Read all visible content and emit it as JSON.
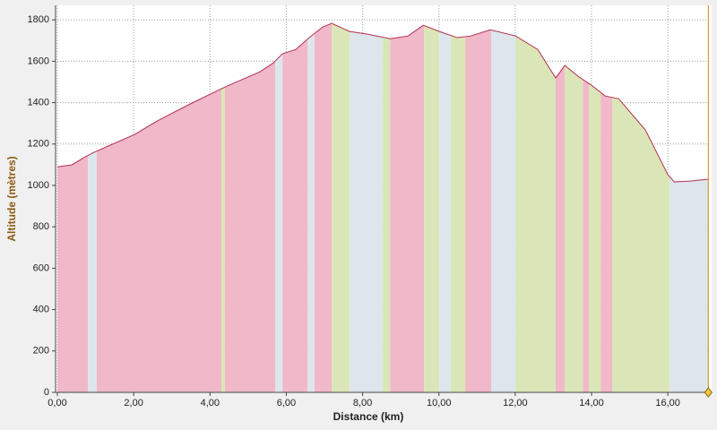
{
  "chart_data": {
    "type": "area",
    "x_label": "Distance (km)",
    "y_label": "Altitude (mètres)",
    "xlim": [
      0,
      17.1
    ],
    "ylim": [
      0,
      1870
    ],
    "xticks": [
      {
        "value": 0,
        "label": "0,00"
      },
      {
        "value": 2,
        "label": "2,00"
      },
      {
        "value": 4,
        "label": "4,00"
      },
      {
        "value": 6,
        "label": "6,00"
      },
      {
        "value": 8,
        "label": "8,00"
      },
      {
        "value": 10,
        "label": "10,00"
      },
      {
        "value": 12,
        "label": "12,00"
      },
      {
        "value": 14,
        "label": "14,00"
      },
      {
        "value": 16,
        "label": "16,00"
      }
    ],
    "yticks": [
      0,
      200,
      400,
      600,
      800,
      1000,
      1200,
      1400,
      1600,
      1800
    ],
    "grid": true,
    "line_color": "#b03050",
    "x": [
      0,
      0.38,
      0.73,
      0.96,
      2.02,
      2.61,
      3.43,
      4.25,
      4.61,
      5.31,
      5.66,
      5.9,
      6.25,
      6.6,
      6.95,
      7.19,
      7.66,
      8.13,
      8.72,
      9.19,
      9.59,
      10.01,
      10.48,
      10.83,
      11.35,
      12.01,
      12.59,
      13.06,
      13.3,
      13.65,
      14.0,
      14.36,
      14.71,
      15.41,
      16.0,
      16.17,
      16.59,
      17.06
    ],
    "values": [
      1090,
      1099,
      1138,
      1160,
      1246,
      1311,
      1389,
      1463,
      1493,
      1549,
      1592,
      1636,
      1657,
      1714,
      1765,
      1783,
      1744,
      1731,
      1709,
      1722,
      1774,
      1744,
      1714,
      1722,
      1752,
      1722,
      1657,
      1519,
      1580,
      1527,
      1484,
      1432,
      1419,
      1268,
      1052,
      1017,
      1021,
      1030
    ],
    "bands": [
      {
        "start": 0,
        "end": 0.8,
        "color": "#f0b8c8"
      },
      {
        "start": 0.8,
        "end": 1.03,
        "color": "#dde6ec"
      },
      {
        "start": 1.03,
        "end": 4.3,
        "color": "#f0b8c8"
      },
      {
        "start": 4.3,
        "end": 4.39,
        "color": "#dbe6b8"
      },
      {
        "start": 4.39,
        "end": 5.71,
        "color": "#f0b8c8"
      },
      {
        "start": 5.71,
        "end": 5.9,
        "color": "#dde6ec"
      },
      {
        "start": 5.9,
        "end": 6.56,
        "color": "#f0b8c8"
      },
      {
        "start": 6.56,
        "end": 6.74,
        "color": "#dde6ec"
      },
      {
        "start": 6.74,
        "end": 7.19,
        "color": "#f0b8c8"
      },
      {
        "start": 7.19,
        "end": 7.66,
        "color": "#dbe6b8"
      },
      {
        "start": 7.66,
        "end": 8.53,
        "color": "#dde6ec"
      },
      {
        "start": 8.53,
        "end": 8.72,
        "color": "#dbe6b8"
      },
      {
        "start": 8.72,
        "end": 9.61,
        "color": "#f0b8c8"
      },
      {
        "start": 9.61,
        "end": 10.01,
        "color": "#dbe6b8"
      },
      {
        "start": 10.01,
        "end": 10.31,
        "color": "#dde6ec"
      },
      {
        "start": 10.31,
        "end": 10.69,
        "color": "#dbe6b8"
      },
      {
        "start": 10.69,
        "end": 11.37,
        "color": "#f0b8c8"
      },
      {
        "start": 11.37,
        "end": 12.01,
        "color": "#dde6ec"
      },
      {
        "start": 12.01,
        "end": 13.06,
        "color": "#dbe6b8"
      },
      {
        "start": 13.06,
        "end": 13.3,
        "color": "#f0b8c8"
      },
      {
        "start": 13.3,
        "end": 13.77,
        "color": "#dbe6b8"
      },
      {
        "start": 13.77,
        "end": 13.93,
        "color": "#f0b8c8"
      },
      {
        "start": 13.93,
        "end": 14.24,
        "color": "#dbe6b8"
      },
      {
        "start": 14.24,
        "end": 14.54,
        "color": "#f0b8c8"
      },
      {
        "start": 14.54,
        "end": 16.05,
        "color": "#dbe6b8"
      },
      {
        "start": 16.05,
        "end": 17.06,
        "color": "#dde6ec"
      }
    ]
  }
}
